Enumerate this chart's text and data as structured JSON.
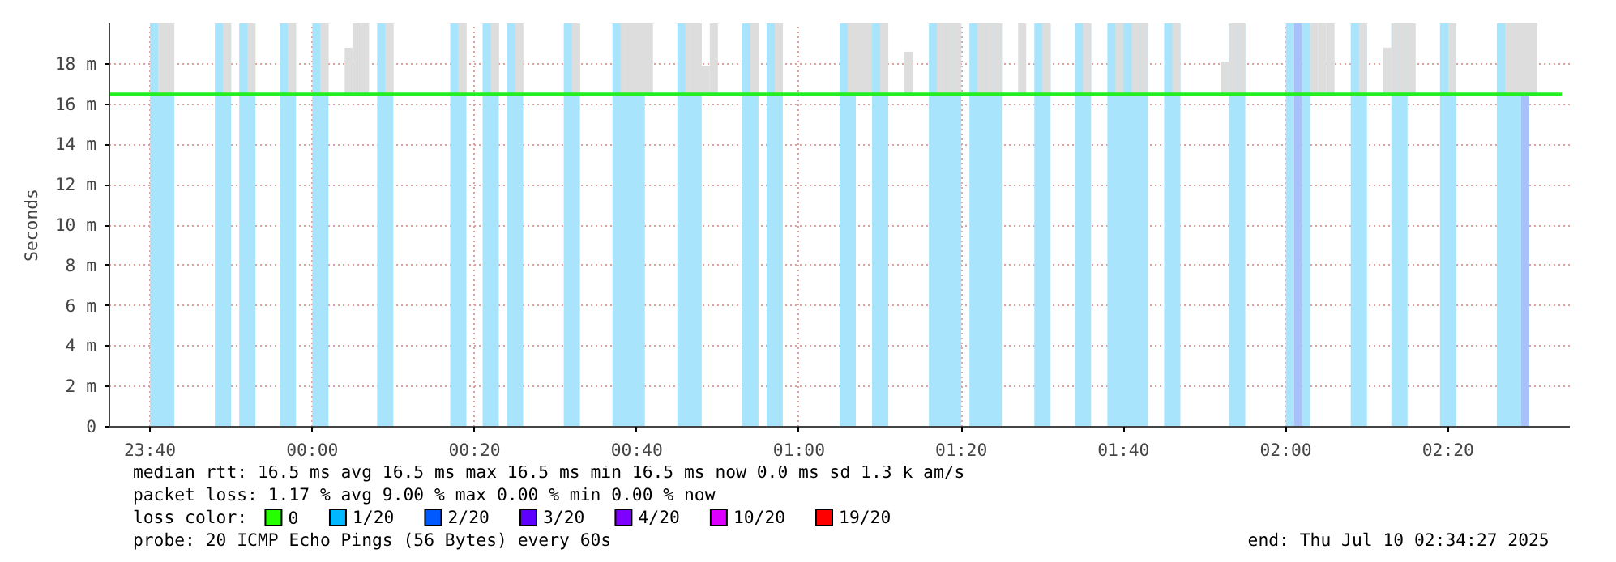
{
  "chart_data": {
    "type": "line",
    "ylabel": "Seconds",
    "xlim": [
      "2025-07-09T23:35",
      "2025-07-10T02:35"
    ],
    "ylim": [
      0,
      20
    ],
    "xticks": [
      {
        "value": "2025-07-09T23:40",
        "label": "23:40"
      },
      {
        "value": "2025-07-10T00:00",
        "label": "00:00"
      },
      {
        "value": "2025-07-10T00:20",
        "label": "00:20"
      },
      {
        "value": "2025-07-10T00:40",
        "label": "00:40"
      },
      {
        "value": "2025-07-10T01:00",
        "label": "01:00"
      },
      {
        "value": "2025-07-10T01:20",
        "label": "01:20"
      },
      {
        "value": "2025-07-10T01:40",
        "label": "01:40"
      },
      {
        "value": "2025-07-10T02:00",
        "label": "02:00"
      },
      {
        "value": "2025-07-10T02:20",
        "label": "02:20"
      }
    ],
    "yticks": [
      0,
      {
        "value": 2,
        "label": "2 m"
      },
      {
        "value": 4,
        "label": "4 m"
      },
      {
        "value": 6,
        "label": "6 m"
      },
      {
        "value": 8,
        "label": "8 m"
      },
      {
        "value": 10,
        "label": "10 m"
      },
      {
        "value": 12,
        "label": "12 m"
      },
      {
        "value": 14,
        "label": "14 m"
      },
      {
        "value": 16,
        "label": "16 m"
      },
      {
        "value": 18,
        "label": "18 m"
      }
    ],
    "grid": true,
    "legend": "bottom left",
    "legend_title": "loss color:",
    "bands": [
      {
        "axis": "x",
        "from": "2025-07-09T23:40",
        "to": "2025-07-09T23:43",
        "color": "#a8e4fc"
      },
      {
        "axis": "x",
        "from": "2025-07-09T23:48",
        "to": "2025-07-09T23:50",
        "color": "#a8e4fc"
      },
      {
        "axis": "x",
        "from": "2025-07-09T23:51",
        "to": "2025-07-09T23:53",
        "color": "#a8e4fc"
      },
      {
        "axis": "x",
        "from": "2025-07-09T23:56",
        "to": "2025-07-09T23:58",
        "color": "#a8e4fc"
      },
      {
        "axis": "x",
        "from": "2025-07-10T00:00",
        "to": "2025-07-10T00:02",
        "color": "#a8e4fc"
      },
      {
        "axis": "x",
        "from": "2025-07-10T00:08",
        "to": "2025-07-10T00:10",
        "color": "#a8e4fc"
      },
      {
        "axis": "x",
        "from": "2025-07-10T00:17",
        "to": "2025-07-10T00:19",
        "color": "#a8e4fc"
      },
      {
        "axis": "x",
        "from": "2025-07-10T00:21",
        "to": "2025-07-10T00:23",
        "color": "#a8e4fc"
      },
      {
        "axis": "x",
        "from": "2025-07-10T00:24",
        "to": "2025-07-10T00:26",
        "color": "#a8e4fc"
      },
      {
        "axis": "x",
        "from": "2025-07-10T00:31",
        "to": "2025-07-10T00:33",
        "color": "#a8e4fc"
      },
      {
        "axis": "x",
        "from": "2025-07-10T00:37",
        "to": "2025-07-10T00:41",
        "color": "#a8e4fc"
      },
      {
        "axis": "x",
        "from": "2025-07-10T00:45",
        "to": "2025-07-10T00:48",
        "color": "#a8e4fc"
      },
      {
        "axis": "x",
        "from": "2025-07-10T00:53",
        "to": "2025-07-10T00:55",
        "color": "#a8e4fc"
      },
      {
        "axis": "x",
        "from": "2025-07-10T00:56",
        "to": "2025-07-10T00:58",
        "color": "#a8e4fc"
      },
      {
        "axis": "x",
        "from": "2025-07-10T01:05",
        "to": "2025-07-10T01:07",
        "color": "#a8e4fc"
      },
      {
        "axis": "x",
        "from": "2025-07-10T01:09",
        "to": "2025-07-10T01:11",
        "color": "#a8e4fc"
      },
      {
        "axis": "x",
        "from": "2025-07-10T01:16",
        "to": "2025-07-10T01:20",
        "color": "#a8e4fc"
      },
      {
        "axis": "x",
        "from": "2025-07-10T01:21",
        "to": "2025-07-10T01:25",
        "color": "#a8e4fc"
      },
      {
        "axis": "x",
        "from": "2025-07-10T01:29",
        "to": "2025-07-10T01:31",
        "color": "#a8e4fc"
      },
      {
        "axis": "x",
        "from": "2025-07-10T01:34",
        "to": "2025-07-10T01:36",
        "color": "#a8e4fc"
      },
      {
        "axis": "x",
        "from": "2025-07-10T01:38",
        "to": "2025-07-10T01:43",
        "color": "#a8e4fc"
      },
      {
        "axis": "x",
        "from": "2025-07-10T01:45",
        "to": "2025-07-10T01:47",
        "color": "#a8e4fc"
      },
      {
        "axis": "x",
        "from": "2025-07-10T01:53",
        "to": "2025-07-10T01:55",
        "color": "#a8e4fc"
      },
      {
        "axis": "x",
        "from": "2025-07-10T02:00",
        "to": "2025-07-10T02:01",
        "color": "#a8e4fc"
      },
      {
        "axis": "x",
        "from": "2025-07-10T02:01",
        "to": "2025-07-10T02:02",
        "color": "#a8c0fc"
      },
      {
        "axis": "x",
        "from": "2025-07-10T02:02",
        "to": "2025-07-10T02:03",
        "color": "#a8e4fc"
      },
      {
        "axis": "x",
        "from": "2025-07-10T02:08",
        "to": "2025-07-10T02:10",
        "color": "#a8e4fc"
      },
      {
        "axis": "x",
        "from": "2025-07-10T02:13",
        "to": "2025-07-10T02:15",
        "color": "#a8e4fc"
      },
      {
        "axis": "x",
        "from": "2025-07-10T02:19",
        "to": "2025-07-10T02:21",
        "color": "#a8e4fc"
      },
      {
        "axis": "x",
        "from": "2025-07-10T02:26",
        "to": "2025-07-10T02:29",
        "color": "#a8e4fc"
      },
      {
        "axis": "x",
        "from": "2025-07-10T02:29",
        "to": "2025-07-10T02:30",
        "color": "#a8c0fc"
      }
    ],
    "series": [
      {
        "type": "bar",
        "color": "#dddddd",
        "x": [
          "2025-07-09T23:41",
          "2025-07-09T23:42",
          "2025-07-09T23:49",
          "2025-07-09T23:52",
          "2025-07-09T23:57",
          "2025-07-10T00:01",
          "2025-07-10T00:04",
          "2025-07-10T00:05",
          "2025-07-10T00:06",
          "2025-07-10T00:09",
          "2025-07-10T00:18",
          "2025-07-10T00:22",
          "2025-07-10T00:25",
          "2025-07-10T00:32",
          "2025-07-10T00:38",
          "2025-07-10T00:39",
          "2025-07-10T00:40",
          "2025-07-10T00:41",
          "2025-07-10T00:46",
          "2025-07-10T00:47",
          "2025-07-10T00:48",
          "2025-07-10T00:49",
          "2025-07-10T00:54",
          "2025-07-10T00:57",
          "2025-07-10T01:06",
          "2025-07-10T01:07",
          "2025-07-10T01:08",
          "2025-07-10T01:10",
          "2025-07-10T01:13",
          "2025-07-10T01:17",
          "2025-07-10T01:18",
          "2025-07-10T01:19",
          "2025-07-10T01:22",
          "2025-07-10T01:23",
          "2025-07-10T01:24",
          "2025-07-10T01:27",
          "2025-07-10T01:30",
          "2025-07-10T01:35",
          "2025-07-10T01:39",
          "2025-07-10T01:41",
          "2025-07-10T01:42",
          "2025-07-10T01:46",
          "2025-07-10T01:52",
          "2025-07-10T01:53",
          "2025-07-10T01:54",
          "2025-07-10T02:03",
          "2025-07-10T02:04",
          "2025-07-10T02:05",
          "2025-07-10T02:09",
          "2025-07-10T02:12",
          "2025-07-10T02:13",
          "2025-07-10T02:14",
          "2025-07-10T02:15",
          "2025-07-10T02:20",
          "2025-07-10T02:27",
          "2025-07-10T02:28",
          "2025-07-10T02:29",
          "2025-07-10T02:30"
        ],
        "base": [
          16.5,
          16.5,
          16.5,
          16.5,
          16.5,
          16.5,
          16.5,
          16.5,
          16.5,
          16.5,
          16.5,
          16.5,
          16.5,
          16.5,
          16.5,
          16.5,
          16.5,
          16.5,
          16.5,
          16.5,
          16.5,
          16.5,
          16.5,
          16.5,
          16.5,
          16.5,
          16.5,
          16.5,
          16.5,
          16.5,
          16.5,
          16.5,
          16.5,
          16.5,
          16.5,
          16.5,
          16.5,
          16.5,
          16.5,
          16.5,
          16.5,
          16.5,
          16.5,
          16.5,
          16.5,
          16.5,
          16.5,
          16.5,
          16.5,
          16.5,
          16.5,
          16.5,
          16.5,
          16.5,
          16.5,
          16.5,
          16.5,
          16.5
        ],
        "values": [
          3.5,
          3.5,
          3.5,
          3.5,
          3.5,
          3.5,
          2.3,
          3.5,
          3.5,
          3.5,
          3.5,
          3.5,
          3.5,
          3.5,
          3.5,
          3.5,
          3.5,
          3.5,
          3.5,
          3.5,
          1.4,
          3.5,
          3.5,
          3.5,
          3.5,
          3.5,
          3.5,
          3.5,
          2.1,
          3.5,
          3.5,
          3.5,
          3.5,
          3.5,
          3.5,
          3.5,
          3.5,
          3.5,
          3.5,
          3.5,
          3.5,
          3.5,
          1.6,
          3.5,
          3.5,
          3.5,
          3.5,
          3.5,
          3.5,
          2.3,
          3.5,
          3.5,
          3.5,
          3.5,
          3.5,
          3.5,
          3.5,
          3.5
        ]
      },
      {
        "color": "#22ee22",
        "x": [
          "2025-07-09T23:35",
          "2025-07-10T02:34"
        ],
        "values": [
          16.5,
          16.5
        ]
      },
      {
        "type": "scatter",
        "marker": "square",
        "name": "0",
        "color": "#26ff00"
      },
      {
        "type": "scatter",
        "marker": "square",
        "name": "1/20",
        "color": "#00b8ff"
      },
      {
        "type": "scatter",
        "marker": "square",
        "name": "2/20",
        "color": "#0059ff"
      },
      {
        "type": "scatter",
        "marker": "square",
        "name": "3/20",
        "color": "#5e00ff"
      },
      {
        "type": "scatter",
        "marker": "square",
        "name": "4/20",
        "color": "#7e00ff"
      },
      {
        "type": "scatter",
        "marker": "square",
        "name": "10/20",
        "color": "#dd00ff"
      },
      {
        "type": "scatter",
        "marker": "square",
        "name": "19/20",
        "color": "#ff0000"
      }
    ],
    "annotations": [
      "median rtt:  16.5 ms avg  16.5 ms max  16.5 ms min  16.5 ms now  0.0 ms sd  1.3 k am/s",
      "packet loss: 1.17 % avg  9.00 % max  0.00 % min  0.00 % now",
      "probe:       20 ICMP Echo Pings (56 Bytes) every 60s",
      "end: Thu Jul 10 02:34:27 2025"
    ]
  }
}
